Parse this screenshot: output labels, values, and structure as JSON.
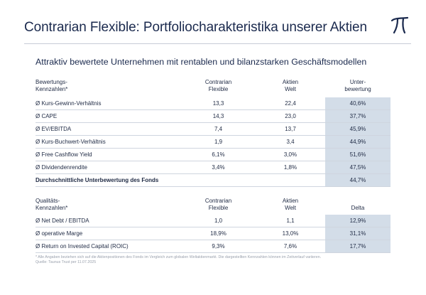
{
  "title": "Contrarian Flexible: Portfoliocharakteristika unserer Aktien",
  "subtitle": "Attraktiv bewertete Unternehmen mit rentablen und bilanzstarken Geschäftsmodellen",
  "valuation": {
    "headers": {
      "label_line1": "Bewertungs-",
      "label_line2": "Kennzahlen*",
      "col1_line1": "Contrarian",
      "col1_line2": "Flexible",
      "col2_line1": "Aktien",
      "col2_line2": "Welt",
      "col3_line1": "Unter-",
      "col3_line2": "bewertung"
    },
    "rows": [
      {
        "label": "Ø Kurs-Gewinn-Verhältnis",
        "fund": "13,3",
        "world": "22,4",
        "delta": "40,6%"
      },
      {
        "label": "Ø CAPE",
        "fund": "14,3",
        "world": "23,0",
        "delta": "37,7%"
      },
      {
        "label": "Ø EV/EBITDA",
        "fund": "7,4",
        "world": "13,7",
        "delta": "45,9%"
      },
      {
        "label": "Ø Kurs-Buchwert-Verhältnis",
        "fund": "1,9",
        "world": "3,4",
        "delta": "44,9%"
      },
      {
        "label": "Ø Free Cashflow Yield",
        "fund": "6,1%",
        "world": "3,0%",
        "delta": "51,6%"
      },
      {
        "label": "Ø Dividendenrendite",
        "fund": "3,4%",
        "world": "1,8%",
        "delta": "47,5%"
      }
    ],
    "summary": {
      "label": "Durchschnittliche Unterbewertung des Fonds",
      "delta": "44,7%"
    }
  },
  "quality": {
    "headers": {
      "label_line1": "Qualitäts-",
      "label_line2": "Kennzahlen*",
      "col1_line1": "Contrarian",
      "col1_line2": "Flexible",
      "col2_line1": "Aktien",
      "col2_line2": "Welt",
      "col3_line1": "",
      "col3_line2": "Delta"
    },
    "rows": [
      {
        "label": "Ø Net Debt / EBITDA",
        "fund": "1,0",
        "world": "1,1",
        "delta": "12,9%"
      },
      {
        "label": "Ø operative Marge",
        "fund": "18,9%",
        "world": "13,0%",
        "delta": "31,1%"
      },
      {
        "label": "Ø Return on Invested Capital (ROIC)",
        "fund": "9,3%",
        "world": "7,6%",
        "delta": "17,7%"
      }
    ]
  },
  "footnote": {
    "line1": "* Alle Angaben beziehen sich auf die Aktienpositionen des Fonds im Vergleich zum globalen Weltaktienmarkt. Die dargestellten Kennzahlen können im Zeitverlauf variieren.",
    "line2": "Quelle: Taunus Trust per 11.07.2025"
  },
  "colors": {
    "accent": "#1b2a4e",
    "highlight": "#d3dde8"
  }
}
